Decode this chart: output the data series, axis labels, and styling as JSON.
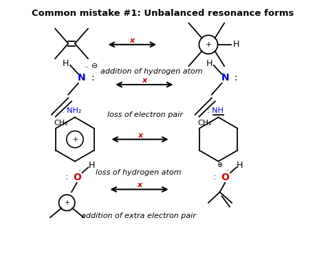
{
  "title": "Common mistake #1: Unbalanced resonance forms",
  "title_fontsize": 9.5,
  "title_fontweight": "bold",
  "bg_color": "#ffffff",
  "label1": "addition of hydrogen atom",
  "label2": "loss of electron pair",
  "label3": "loss of hydrogen atom",
  "label4": "addition of extra electron pair",
  "black_color": "#000000",
  "blue_color": "#0000cc",
  "red_color": "#cc0000",
  "orange_red": "#cc2200"
}
